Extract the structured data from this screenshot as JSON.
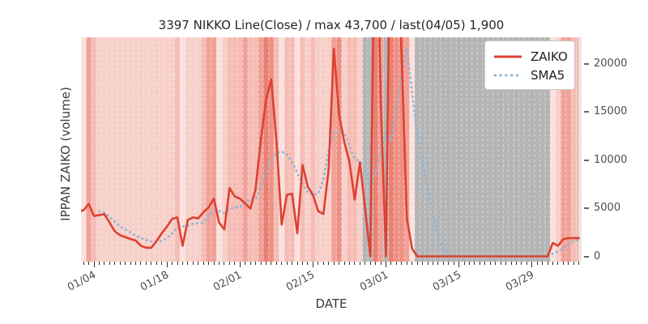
{
  "ui": {
    "title": "3397 NIKKO Line(Close) / max 43,700 / last(04/05) 1,900",
    "y_axis_label": "IPPAN ZAIKO (volume)",
    "x_axis_label": "DATE",
    "legend": {
      "items": [
        {
          "label": "ZAIKO"
        },
        {
          "label": "SMA5"
        }
      ]
    }
  },
  "chart_data": {
    "type": "line",
    "title": "3397 NIKKO Line(Close) / max 43,700 / last(04/05) 1,900",
    "max_value": 43700,
    "last_label": "last(04/05) 1,900",
    "last_value": 1900,
    "ylim": [
      -500,
      22800
    ],
    "legend_position": "upper right",
    "grid": "vertical daily white dashed lines",
    "plot_bg": "#e9e9e9",
    "y_ticks": [
      {
        "value": 0,
        "label": "0"
      },
      {
        "value": 5000,
        "label": "5000"
      },
      {
        "value": 10000,
        "label": "10000"
      },
      {
        "value": 15000,
        "label": "15000"
      },
      {
        "value": 20000,
        "label": "20000"
      }
    ],
    "x_ticks": [
      {
        "day_index": 3,
        "label": "01/04"
      },
      {
        "day_index": 17,
        "label": "01/18"
      },
      {
        "day_index": 31,
        "label": "02/01"
      },
      {
        "day_index": 45,
        "label": "02/15"
      },
      {
        "day_index": 59,
        "label": "03/01"
      },
      {
        "day_index": 73,
        "label": "03/15"
      },
      {
        "day_index": 87,
        "label": "03/29"
      }
    ],
    "x": [
      "01/01",
      "01/02",
      "01/03",
      "01/04",
      "01/05",
      "01/06",
      "01/07",
      "01/08",
      "01/09",
      "01/10",
      "01/11",
      "01/12",
      "01/13",
      "01/14",
      "01/15",
      "01/16",
      "01/17",
      "01/18",
      "01/19",
      "01/20",
      "01/21",
      "01/22",
      "01/23",
      "01/24",
      "01/25",
      "01/26",
      "01/27",
      "01/28",
      "01/29",
      "01/30",
      "01/31",
      "02/01",
      "02/02",
      "02/03",
      "02/04",
      "02/05",
      "02/06",
      "02/07",
      "02/08",
      "02/09",
      "02/10",
      "02/11",
      "02/12",
      "02/13",
      "02/14",
      "02/15",
      "02/16",
      "02/17",
      "02/18",
      "02/19",
      "02/20",
      "02/21",
      "02/22",
      "02/23",
      "02/24",
      "02/25",
      "02/26",
      "02/27",
      "02/28",
      "03/01",
      "03/02",
      "03/03",
      "03/04",
      "03/05",
      "03/06",
      "03/07",
      "03/08",
      "03/09",
      "03/10",
      "03/11",
      "03/12",
      "03/13",
      "03/14",
      "03/15",
      "03/16",
      "03/17",
      "03/18",
      "03/19",
      "03/20",
      "03/21",
      "03/22",
      "03/23",
      "03/24",
      "03/25",
      "03/26",
      "03/27",
      "03/28",
      "03/29",
      "03/30",
      "03/31",
      "04/01",
      "04/02",
      "04/03",
      "04/04",
      "04/05",
      "04/06",
      "04/07"
    ],
    "series": [
      {
        "name": "ZAIKO",
        "color": "#dd4132",
        "line_style": "solid",
        "values": [
          4600,
          4800,
          5450,
          4200,
          4300,
          4380,
          3500,
          2600,
          2200,
          2000,
          1800,
          1650,
          1100,
          900,
          900,
          1600,
          2400,
          3100,
          3900,
          4050,
          1100,
          3800,
          4050,
          3950,
          4600,
          5100,
          6000,
          3500,
          2800,
          7100,
          6240,
          6000,
          5500,
          4970,
          7000,
          12100,
          16300,
          18400,
          12000,
          3300,
          6400,
          6500,
          2400,
          9500,
          7250,
          6400,
          4700,
          4400,
          9000,
          21600,
          14800,
          11900,
          9800,
          5900,
          9780,
          5000,
          0,
          43700,
          16000,
          0,
          43700,
          35000,
          21000,
          4000,
          800,
          0,
          0,
          0,
          0,
          0,
          0,
          0,
          0,
          0,
          0,
          0,
          0,
          0,
          0,
          0,
          0,
          0,
          0,
          0,
          0,
          0,
          0,
          0,
          0,
          0,
          0,
          1400,
          1100,
          1800,
          1900,
          1900,
          1900
        ]
      },
      {
        "name": "SMA5",
        "color": "#8fb5d6",
        "line_style": "dotted",
        "values": [
          null,
          null,
          null,
          null,
          4700,
          4550,
          4100,
          3600,
          3100,
          2800,
          2500,
          2150,
          1900,
          1700,
          1550,
          1500,
          1600,
          1900,
          2400,
          3000,
          3100,
          3200,
          3400,
          3450,
          3500,
          4300,
          4740,
          4700,
          4500,
          4900,
          5130,
          5130,
          5530,
          5960,
          5940,
          7100,
          8700,
          10000,
          10790,
          10880,
          10620,
          9780,
          8680,
          7500,
          6660,
          6400,
          6500,
          8000,
          11000,
          12900,
          12980,
          12900,
          11500,
          10200,
          9800,
          9400,
          7100,
          8770,
          10790,
          13000,
          12000,
          15300,
          18800,
          21600,
          17100,
          12560,
          9780,
          7000,
          4470,
          2190,
          760,
          250,
          100,
          0,
          0,
          0,
          0,
          0,
          0,
          0,
          0,
          0,
          0,
          0,
          0,
          0,
          0,
          0,
          0,
          0,
          0,
          280,
          500,
          860,
          1240,
          1620,
          1720
        ]
      }
    ],
    "band_palette": {
      "pale": "#fbe2de",
      "light": "#f8d0ca",
      "medium": "#f5bdb5",
      "salmon": "#f1a298",
      "salmon2": "#ee9184",
      "red": "#ea8072",
      "gray": "#b5b5b5"
    },
    "band_colors": [
      "pale",
      "pale",
      "salmon",
      "medium",
      "light",
      "light",
      "light",
      "light",
      "light",
      "light",
      "light",
      "light",
      "light",
      "light",
      "light",
      "light",
      "light",
      "light",
      "light",
      "medium",
      "pale",
      "light",
      "light",
      "light",
      "medium",
      "salmon",
      "salmon",
      "pale",
      "light",
      "medium",
      "medium",
      "medium",
      "salmon",
      "medium",
      "medium",
      "salmon",
      "red",
      "salmon2",
      "medium",
      "pale",
      "medium",
      "medium",
      "pale",
      "medium",
      "light",
      "medium",
      "light",
      "light",
      "light",
      "salmon",
      "salmon2",
      "light",
      "medium",
      "medium",
      "light",
      "gray",
      "gray",
      "red",
      "salmon",
      "gray",
      "red",
      "salmon2",
      "salmon2",
      "salmon",
      "pale",
      "gray",
      "gray",
      "gray",
      "gray",
      "gray",
      "gray",
      "gray",
      "gray",
      "gray",
      "gray",
      "gray",
      "gray",
      "gray",
      "gray",
      "gray",
      "gray",
      "gray",
      "gray",
      "gray",
      "gray",
      "gray",
      "gray",
      "gray",
      "gray",
      "gray",
      "gray",
      "pale",
      "light",
      "salmon",
      "salmon",
      "medium",
      "medium"
    ]
  }
}
